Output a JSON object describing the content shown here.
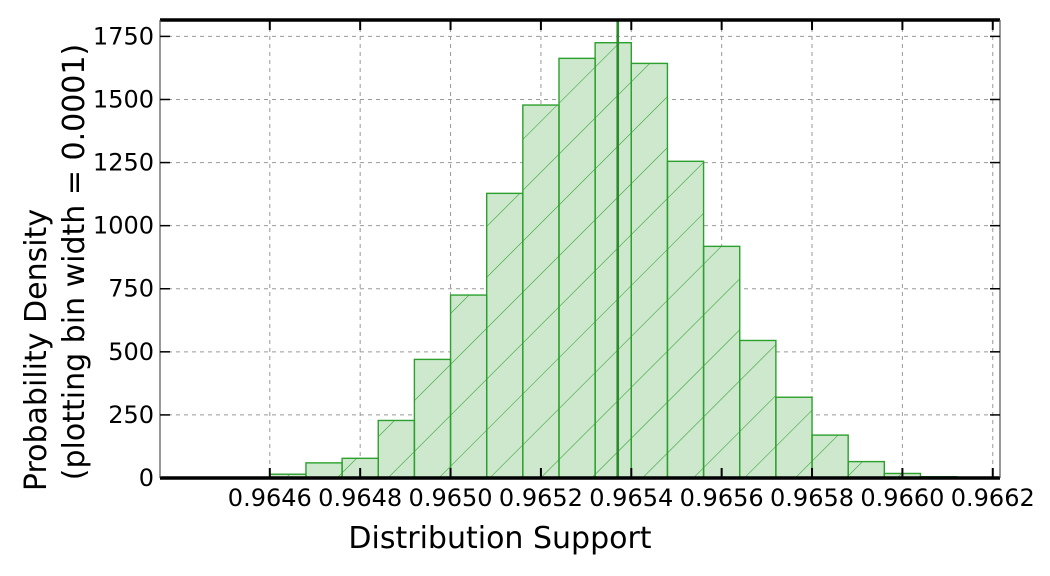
{
  "chart_data": {
    "type": "histogram",
    "title": "",
    "xlabel": "Distribution Support",
    "ylabel_lines": [
      "Probability Density",
      "(plotting bin width = 0.0001)"
    ],
    "xlim": [
      0.964357,
      0.966216
    ],
    "ylim": [
      0,
      1815
    ],
    "xticks": [
      {
        "value": 0.9646,
        "label": "0.9646"
      },
      {
        "value": 0.9648,
        "label": "0.9648"
      },
      {
        "value": 0.965,
        "label": "0.9650"
      },
      {
        "value": 0.9652,
        "label": "0.9652"
      },
      {
        "value": 0.9654,
        "label": "0.9654"
      },
      {
        "value": 0.9656,
        "label": "0.9656"
      },
      {
        "value": 0.9658,
        "label": "0.9658"
      },
      {
        "value": 0.966,
        "label": "0.9660"
      },
      {
        "value": 0.9662,
        "label": "0.9662"
      }
    ],
    "yticks": [
      {
        "value": 0,
        "label": "0"
      },
      {
        "value": 250,
        "label": "250"
      },
      {
        "value": 500,
        "label": "500"
      },
      {
        "value": 750,
        "label": "750"
      },
      {
        "value": 1000,
        "label": "1000"
      },
      {
        "value": 1250,
        "label": "1250"
      },
      {
        "value": 1500,
        "label": "1500"
      },
      {
        "value": 1750,
        "label": "1750"
      }
    ],
    "bins": {
      "edges": [
        0.9646,
        0.96468,
        0.96476,
        0.96484,
        0.96492,
        0.965,
        0.96508,
        0.96516,
        0.96524,
        0.96532,
        0.9654,
        0.96548,
        0.96556,
        0.96564,
        0.96572,
        0.9658,
        0.96588,
        0.96596,
        0.96604,
        0.96612
      ],
      "extra_edge": 0.96532,
      "extra_value": 1725,
      "density": [
        15,
        60,
        78,
        228,
        470,
        725,
        1128,
        1478,
        1663,
        1725,
        1643,
        1255,
        918,
        545,
        320,
        170,
        65,
        18,
        5
      ]
    },
    "vline": 0.96537,
    "grid": true,
    "colors": {
      "fill": "#cde8cd",
      "edge": "#2ca02c",
      "hatch": "#2ca02c",
      "vline": "#2b8a2b",
      "grid": "#999999",
      "axis": "#000000"
    }
  }
}
